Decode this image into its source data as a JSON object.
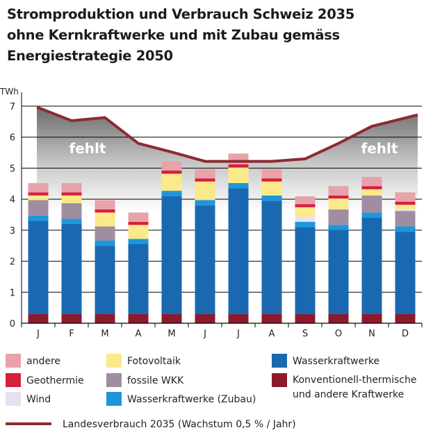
{
  "title_lines": [
    "Stromproduktion und Verbrauch Schweiz 2035",
    "ohne Kernkraftwerke und mit Zubau gemäss",
    "Energiestrategie 2050"
  ],
  "chart_data": {
    "type": "bar",
    "stacked": true,
    "ylabel": "TWh",
    "ylim": [
      0,
      7
    ],
    "yticks": [
      "0",
      "1",
      "2",
      "3",
      "4",
      "5",
      "6",
      "7"
    ],
    "grid": true,
    "categories": [
      "J",
      "F",
      "M",
      "A",
      "M",
      "J",
      "J",
      "A",
      "S",
      "O",
      "N",
      "D"
    ],
    "series": [
      {
        "name": "Konventionell-thermische und andere Kraftwerke",
        "color": "#8c1a2c",
        "values": [
          0.3,
          0.3,
          0.3,
          0.3,
          0.3,
          0.3,
          0.3,
          0.3,
          0.3,
          0.3,
          0.3,
          0.3
        ]
      },
      {
        "name": "Wasserkraftwerke",
        "color": "#1a69b0",
        "values": [
          3.0,
          2.9,
          2.2,
          2.25,
          3.8,
          3.5,
          4.05,
          3.65,
          2.8,
          2.7,
          3.1,
          2.65
        ]
      },
      {
        "name": "Wasserkraftwerke (Zubau)",
        "color": "#1e96dc",
        "values": [
          0.17,
          0.17,
          0.17,
          0.17,
          0.17,
          0.17,
          0.17,
          0.17,
          0.17,
          0.17,
          0.17,
          0.17
        ]
      },
      {
        "name": "fossile WKK",
        "color": "#9e8ea0",
        "values": [
          0.5,
          0.5,
          0.45,
          0.0,
          0.0,
          0.0,
          0.0,
          0.0,
          0.0,
          0.5,
          0.55,
          0.5
        ]
      },
      {
        "name": "Wind",
        "color": "#e8e0f2",
        "values": [
          0.0,
          0.0,
          0.0,
          0.0,
          0.0,
          0.0,
          0.0,
          0.0,
          0.17,
          0.0,
          0.0,
          0.05
        ]
      },
      {
        "name": "Fotovoltaik",
        "color": "#fbe98a",
        "values": [
          0.15,
          0.25,
          0.45,
          0.45,
          0.55,
          0.6,
          0.5,
          0.45,
          0.3,
          0.35,
          0.2,
          0.15
        ]
      },
      {
        "name": "Geothermie",
        "color": "#d61f3c",
        "values": [
          0.1,
          0.1,
          0.1,
          0.1,
          0.1,
          0.1,
          0.1,
          0.1,
          0.1,
          0.1,
          0.1,
          0.1
        ]
      },
      {
        "name": "andere",
        "color": "#e8a2aa",
        "values": [
          0.3,
          0.3,
          0.3,
          0.3,
          0.3,
          0.3,
          0.35,
          0.3,
          0.25,
          0.3,
          0.3,
          0.3
        ]
      }
    ],
    "line": {
      "name": "Landesverbrauch 2035 (Wachstum 0,5% / Jahr)",
      "color": "#8c2a32",
      "values": [
        6.97,
        6.53,
        6.63,
        5.8,
        5.52,
        5.22,
        5.22,
        5.22,
        5.3,
        5.8,
        6.35,
        6.72
      ]
    },
    "annotations": [
      "fehlt",
      "fehlt"
    ]
  },
  "legend": {
    "andere": "andere",
    "geothermie": "Geothermie",
    "wind": "Wind",
    "fotovoltaik": "Fotovoltaik",
    "fossile": "fossile WKK",
    "wasser_zubau": "Wasserkraftwerke (Zubau)",
    "wasser": "Wasserkraftwerke",
    "konv_line1": "Konventionell-thermische",
    "konv_line2": "und andere Kraftwerke",
    "verbrauch": "Landesverbrauch 2035 (Wachstum 0,5 % / Jahr)"
  }
}
